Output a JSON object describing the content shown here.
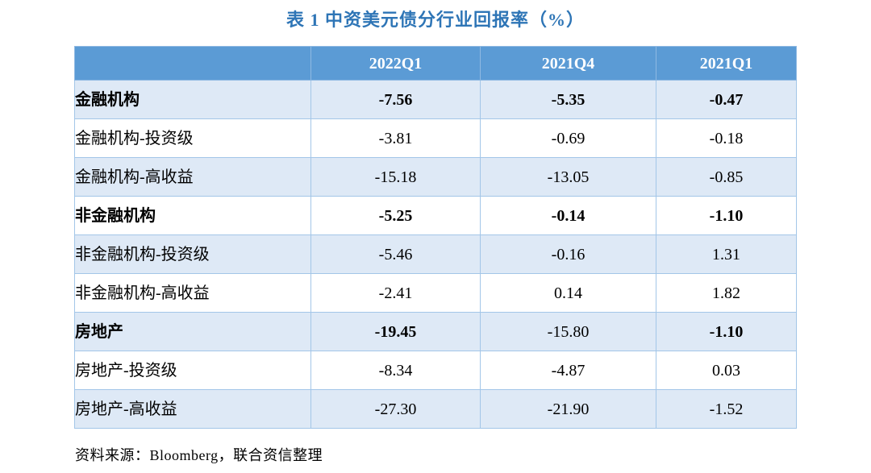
{
  "title": "表 1 中资美元债分行业回报率（%）",
  "source": "资料来源：Bloomberg，联合资信整理",
  "columns": [
    "",
    "2022Q1",
    "2021Q4",
    "2021Q1"
  ],
  "colors": {
    "title": "#2E75B6",
    "header_bg": "#5B9BD5",
    "header_text": "#FFFFFF",
    "band_bg": "#DEE9F6",
    "row_bg": "#FFFFFF",
    "border": "#A3C6E8",
    "text": "#000000"
  },
  "rows": [
    {
      "label": "金融机构",
      "bold": true,
      "values": [
        "-7.56",
        "-5.35",
        "-0.47"
      ],
      "value_bold": [
        true,
        true,
        true
      ]
    },
    {
      "label": "金融机构-投资级",
      "bold": false,
      "values": [
        "-3.81",
        "-0.69",
        "-0.18"
      ],
      "value_bold": [
        false,
        false,
        false
      ]
    },
    {
      "label": "金融机构-高收益",
      "bold": false,
      "values": [
        "-15.18",
        "-13.05",
        "-0.85"
      ],
      "value_bold": [
        false,
        false,
        false
      ]
    },
    {
      "label": "非金融机构",
      "bold": true,
      "values": [
        "-5.25",
        "-0.14",
        "-1.10"
      ],
      "value_bold": [
        true,
        true,
        true
      ]
    },
    {
      "label": "非金融机构-投资级",
      "bold": false,
      "values": [
        "-5.46",
        "-0.16",
        "1.31"
      ],
      "value_bold": [
        false,
        false,
        false
      ]
    },
    {
      "label": "非金融机构-高收益",
      "bold": false,
      "values": [
        "-2.41",
        "0.14",
        "1.82"
      ],
      "value_bold": [
        false,
        false,
        false
      ]
    },
    {
      "label": "房地产",
      "bold": true,
      "values": [
        "-19.45",
        "-15.80",
        "-1.10"
      ],
      "value_bold": [
        true,
        false,
        true
      ]
    },
    {
      "label": "房地产-投资级",
      "bold": false,
      "values": [
        "-8.34",
        "-4.87",
        "0.03"
      ],
      "value_bold": [
        false,
        false,
        false
      ]
    },
    {
      "label": "房地产-高收益",
      "bold": false,
      "values": [
        "-27.30",
        "-21.90",
        "-1.52"
      ],
      "value_bold": [
        false,
        false,
        false
      ]
    }
  ],
  "chart_data": {
    "type": "table",
    "title": "表 1 中资美元债分行业回报率（%）",
    "categories": [
      "金融机构",
      "金融机构-投资级",
      "金融机构-高收益",
      "非金融机构",
      "非金融机构-投资级",
      "非金融机构-高收益",
      "房地产",
      "房地产-投资级",
      "房地产-高收益"
    ],
    "series": [
      {
        "name": "2022Q1",
        "values": [
          -7.56,
          -3.81,
          -15.18,
          -5.25,
          -5.46,
          -2.41,
          -19.45,
          -8.34,
          -27.3
        ]
      },
      {
        "name": "2021Q4",
        "values": [
          -5.35,
          -0.69,
          -13.05,
          -0.14,
          -0.16,
          0.14,
          -15.8,
          -4.87,
          -21.9
        ]
      },
      {
        "name": "2021Q1",
        "values": [
          -0.47,
          -0.18,
          -0.85,
          -1.1,
          1.31,
          1.82,
          -1.1,
          0.03,
          -1.52
        ]
      }
    ]
  }
}
